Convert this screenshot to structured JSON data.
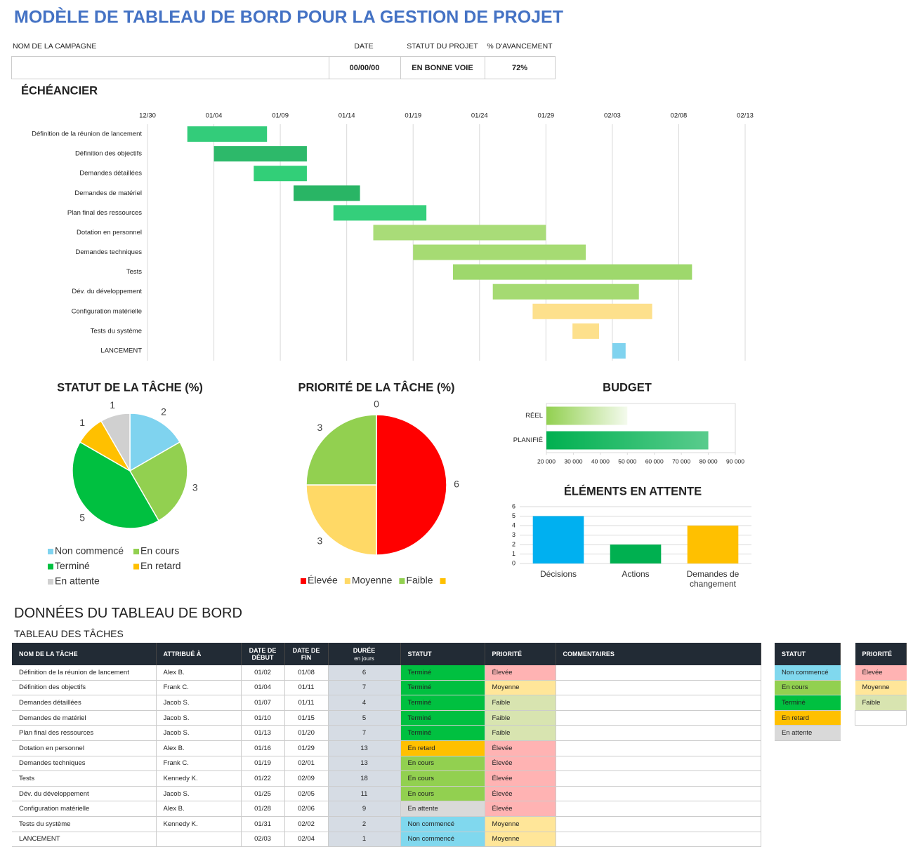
{
  "header": {
    "title": "MODÈLE DE TABLEAU DE BORD POUR LA GESTION DE PROJET",
    "labels": [
      "NOM DE LA CAMPAGNE",
      "DATE",
      "STATUT DU PROJET",
      "% D'AVANCEMENT"
    ],
    "date": "00/00/00",
    "status": "EN BONNE VOIE",
    "progress": "72%"
  },
  "chart_data": [
    {
      "type": "gantt",
      "title": "ÉCHÉANCIER",
      "categories": [
        "Définition de la réunion de lancement",
        "Définition des objectifs",
        "Demandes détaillées",
        "Demandes de matériel",
        "Plan final des ressources",
        "Dotation en personnel",
        "Demandes techniques",
        "Tests",
        "Dév. du développement",
        "Configuration matérielle",
        "Tests du système",
        "LANCEMENT"
      ],
      "start": [
        "01/02",
        "01/04",
        "01/07",
        "01/10",
        "01/13",
        "01/16",
        "01/19",
        "01/22",
        "01/25",
        "01/28",
        "01/31",
        "02/03"
      ],
      "values": [
        6,
        7,
        4,
        5,
        7,
        13,
        13,
        18,
        11,
        9,
        2,
        1
      ],
      "colors": [
        "#33cc7a",
        "#2db96a",
        "#32cf78",
        "#29b565",
        "#34cf7b",
        "#a9dc78",
        "#a6db73",
        "#9ed86c",
        "#a5da72",
        "#fde08c",
        "#fde08c",
        "#80d3ef"
      ],
      "xlim": [
        "12/30",
        "02/13"
      ],
      "xticks": [
        "12/30",
        "01/04",
        "01/09",
        "01/14",
        "01/19",
        "01/24",
        "01/29",
        "02/03",
        "02/08",
        "02/13"
      ],
      "grid": true
    },
    {
      "type": "pie",
      "title": "STATUT DE LA TÂCHE (%)",
      "categories": [
        "Non commencé",
        "En cours",
        "Terminé",
        "En retard",
        "En attente"
      ],
      "values": [
        2,
        3,
        5,
        1,
        1
      ],
      "colors": [
        "#7fd3ef",
        "#92d050",
        "#00c040",
        "#ffc000",
        "#d0d0d0"
      ],
      "legend": "bottom"
    },
    {
      "type": "pie",
      "title": "PRIORITÉ DE LA TÂCHE (%)",
      "categories": [
        "Élevée",
        "Moyenne",
        "Faible",
        null
      ],
      "values": [
        6,
        3,
        3,
        0
      ],
      "colors": [
        "#ff0000",
        "#ffd966",
        "#92d050",
        "#ffc000"
      ],
      "legend": "bottom"
    },
    {
      "type": "hbar",
      "title": "BUDGET",
      "categories": [
        "RÉEL",
        "PLANIFIÉ"
      ],
      "values": [
        50000,
        80000
      ],
      "colors": [
        "#92d050",
        "#00b050"
      ],
      "xlim": [
        20000,
        90000
      ],
      "xticks": [
        {
          "value": 20000,
          "label": "20 000"
        },
        {
          "value": 30000,
          "label": "30 000"
        },
        {
          "value": 40000,
          "label": "40 000"
        },
        {
          "value": 50000,
          "label": "50 000"
        },
        {
          "value": 60000,
          "label": "60 000"
        },
        {
          "value": 70000,
          "label": "70 000"
        },
        {
          "value": 80000,
          "label": "80 000"
        },
        {
          "value": 90000,
          "label": "90 000"
        }
      ],
      "grid": false
    },
    {
      "type": "bar",
      "title": "ÉLÉMENTS EN ATTENTE",
      "categories": [
        "Décisions",
        "Actions",
        "Demandes de changement"
      ],
      "values": [
        5,
        2,
        4
      ],
      "colors": [
        "#00b0f0",
        "#00b050",
        "#ffc000"
      ],
      "ylim": [
        0,
        6
      ],
      "yticks": [
        0,
        1,
        2,
        3,
        4,
        5,
        6
      ],
      "grid": true
    }
  ],
  "task_table": {
    "title": "DONNÉES DU TABLEAU DE BORD",
    "subtitle": "TABLEAU DES TÂCHES",
    "columns": [
      "NOM DE LA TÂCHE",
      "ATTRIBUÉ À",
      "DATE DE DÉBUT",
      "DATE DE FIN",
      "DURÉE",
      "STATUT",
      "PRIORITÉ",
      "COMMENTAIRES"
    ],
    "duration_unit": "en jours",
    "rows": [
      [
        "Définition de la réunion de lancement",
        "Alex B.",
        "01/02",
        "01/08",
        6,
        "Terminé",
        "Élevée"
      ],
      [
        "Définition des objectifs",
        "Frank C.",
        "01/04",
        "01/11",
        7,
        "Terminé",
        "Moyenne"
      ],
      [
        "Demandes détaillées",
        "Jacob S.",
        "01/07",
        "01/11",
        4,
        "Terminé",
        "Faible"
      ],
      [
        "Demandes de matériel",
        "Jacob S.",
        "01/10",
        "01/15",
        5,
        "Terminé",
        "Faible"
      ],
      [
        "Plan final des ressources",
        "Jacob S.",
        "01/13",
        "01/20",
        7,
        "Terminé",
        "Faible"
      ],
      [
        "Dotation en personnel",
        "Alex B.",
        "01/16",
        "01/29",
        13,
        "En retard",
        "Élevée"
      ],
      [
        "Demandes techniques",
        "Frank C.",
        "01/19",
        "02/01",
        13,
        "En cours",
        "Élevée"
      ],
      [
        "Tests",
        "Kennedy K.",
        "01/22",
        "02/09",
        18,
        "En cours",
        "Élevée"
      ],
      [
        "Dév. du développement",
        "Jacob S.",
        "01/25",
        "02/05",
        11,
        "En cours",
        "Élevée"
      ],
      [
        "Configuration matérielle",
        "Alex B.",
        "01/28",
        "02/06",
        9,
        "En attente",
        "Élevée"
      ],
      [
        "Tests du système",
        "Kennedy K.",
        "01/31",
        "02/02",
        2,
        "Non commencé",
        "Moyenne"
      ],
      [
        "LANCEMENT",
        null,
        "02/03",
        "02/04",
        1,
        "Non commencé",
        "Moyenne"
      ]
    ]
  },
  "status_legend": {
    "title": "STATUT",
    "items": [
      {
        "name": "Non commencé",
        "color": "#80d8ee"
      },
      {
        "name": "En cours",
        "color": "#92d050"
      },
      {
        "name": "Terminé",
        "color": "#00c040"
      },
      {
        "name": "En retard",
        "color": "#ffc000"
      },
      {
        "name": "En attente",
        "color": "#d9d9d9"
      }
    ]
  },
  "priority_legend": {
    "title": "PRIORITÉ",
    "items": [
      {
        "name": "Élevée",
        "color": "#ffb3b3"
      },
      {
        "name": "Moyenne",
        "color": "#ffe699"
      },
      {
        "name": "Faible",
        "color": "#d8e4b0"
      }
    ]
  }
}
